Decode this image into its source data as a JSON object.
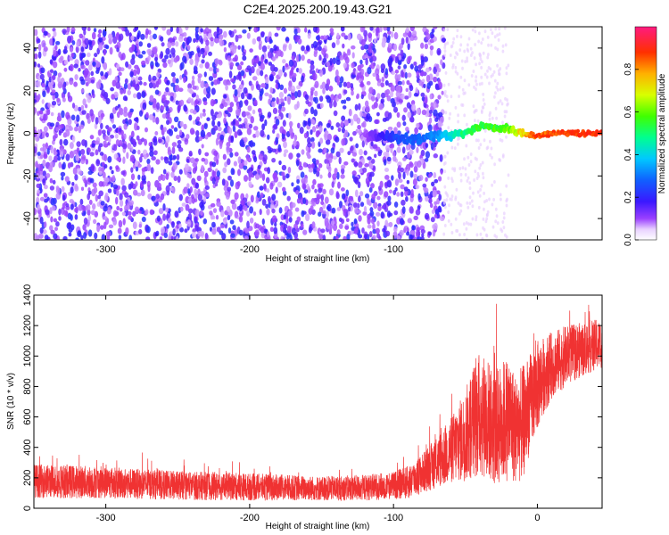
{
  "title": "C2E4.2025.200.19.43.G21",
  "colors": {
    "snr_line": "#f03232",
    "spectrogram_noise": "#7a1ff0",
    "signal_peak": "#ff1a1a"
  },
  "chart_data": [
    {
      "type": "heatmap",
      "title": "C2E4.2025.200.19.43.G21",
      "xlabel": "Height of straight line (km)",
      "ylabel": "Frequency (Hz)",
      "xlim": [
        -350,
        45
      ],
      "ylim": [
        -50,
        50
      ],
      "x_ticks": [
        -300,
        -200,
        -100,
        0
      ],
      "y_ticks": [
        -40,
        -20,
        0,
        20,
        40
      ],
      "colorbar": {
        "label": "Normalized spectral amplitude",
        "range": [
          0.0,
          1.0
        ],
        "ticks": [
          "0.0",
          "0.2",
          "0.4",
          "0.6",
          "0.8"
        ],
        "colormap": "rainbow (purple to red)"
      },
      "noise_floor_region": {
        "x": [
          -350,
          -65
        ],
        "amplitude": 0.2
      },
      "signal_track": {
        "x": [
          -120,
          -100,
          -90,
          -80,
          -70,
          -60,
          -50,
          -40,
          -30,
          -20,
          -10,
          0,
          10,
          20,
          30,
          45
        ],
        "frequency": [
          -1,
          -2,
          -3,
          -2,
          -1,
          -1,
          0,
          3,
          3,
          2,
          0,
          -1,
          0,
          0,
          0,
          0
        ],
        "amplitude": [
          0.1,
          0.25,
          0.3,
          0.3,
          0.35,
          0.45,
          0.55,
          0.6,
          0.6,
          0.65,
          0.8,
          0.95,
          0.95,
          0.98,
          1.0,
          1.0
        ]
      }
    },
    {
      "type": "line",
      "xlabel": "Height of straight line (km)",
      "ylabel": "SNR (10 * v/v)",
      "xlim": [
        -350,
        45
      ],
      "ylim": [
        0,
        1400
      ],
      "x_ticks": [
        -300,
        -200,
        -100,
        0
      ],
      "y_ticks": [
        0,
        200,
        400,
        600,
        800,
        1000,
        1200,
        1400
      ],
      "series": [
        {
          "x": [
            -350,
            -330,
            -300,
            -280,
            -250,
            -200,
            -150,
            -120,
            -100,
            -90,
            -80,
            -70,
            -60,
            -50,
            -45,
            -40,
            -35,
            -30,
            -25,
            -20,
            -15,
            -10,
            -5,
            0,
            5,
            10,
            20,
            30,
            40,
            45
          ],
          "mean": [
            180,
            175,
            170,
            160,
            150,
            140,
            130,
            135,
            150,
            170,
            230,
            300,
            380,
            480,
            560,
            620,
            600,
            520,
            560,
            600,
            520,
            560,
            700,
            800,
            880,
            940,
            1000,
            1040,
            1070,
            1080
          ],
          "spread": [
            110,
            110,
            105,
            100,
            95,
            90,
            80,
            85,
            90,
            110,
            130,
            170,
            220,
            300,
            380,
            420,
            400,
            380,
            400,
            420,
            360,
            380,
            320,
            300,
            250,
            220,
            200,
            180,
            170,
            160
          ]
        }
      ]
    }
  ]
}
